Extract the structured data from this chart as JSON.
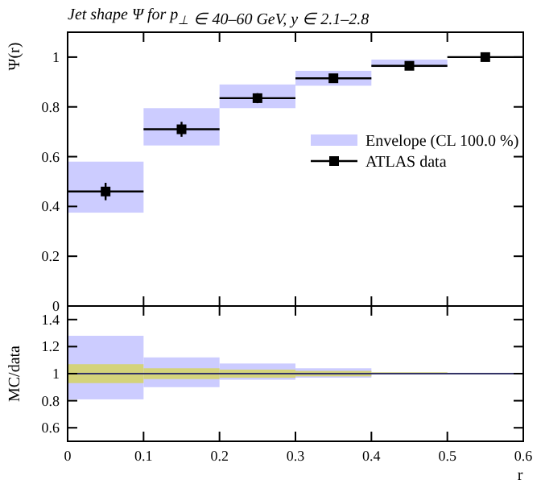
{
  "chart_data": [
    {
      "type": "scatter",
      "title": "Jet shape Ψ for p$_{⊥}$ ∈ 40–60 GeV, y ∈ 2.1–2.8",
      "ylabel": "Ψ(r)",
      "xlim": [
        0,
        0.6
      ],
      "xticks": [
        0,
        0.1,
        0.2,
        0.3,
        0.4,
        0.5,
        0.6
      ],
      "ylim": [
        0,
        1.1
      ],
      "yticks": [
        0,
        0.2,
        0.4,
        0.6,
        0.8,
        1
      ],
      "tick_labels": "y",
      "legend": "right",
      "grid": false,
      "series": [
        {
          "name": "Envelope (CL 100.0 %)",
          "type": "bar",
          "color": "#ccccff",
          "x": [
            0.05,
            0.15,
            0.25,
            0.35,
            0.45
          ],
          "base": [
            0.375,
            0.645,
            0.795,
            0.885,
            0.96
          ],
          "values": [
            0.205,
            0.15,
            0.095,
            0.06,
            0.03
          ]
        },
        {
          "name": "ATLAS data",
          "color": "#000000",
          "marker": "square",
          "x": [
            0.05,
            0.15,
            0.25,
            0.35,
            0.45,
            0.55
          ],
          "values": [
            0.46,
            0.71,
            0.835,
            0.915,
            0.965,
            1.0
          ],
          "errors": [
            0.035,
            0.03,
            0.02,
            0.012,
            0.006,
            0.004
          ],
          "xerrors": [
            0.05,
            0.05,
            0.05,
            0.05,
            0.05,
            0.05
          ]
        }
      ]
    },
    {
      "type": "bar",
      "ylabel": "MC/data",
      "xlabel": "r",
      "xlim": [
        0,
        0.6
      ],
      "xticks": [
        0,
        0.1,
        0.2,
        0.3,
        0.4,
        0.5,
        0.6
      ],
      "ylim": [
        0.5,
        1.5
      ],
      "yticks": [
        0.6,
        0.8,
        1,
        1.2,
        1.4
      ],
      "grid": false,
      "legend": false,
      "ref_lines": [
        {
          "axis": "y",
          "value": 1,
          "color": "#333366"
        }
      ],
      "series": [
        {
          "color": "#ccccff",
          "x": [
            0.05,
            0.15,
            0.25,
            0.35
          ],
          "base": [
            0.81,
            0.9,
            0.955,
            0.97
          ],
          "values": [
            0.47,
            0.22,
            0.12,
            0.07
          ]
        },
        {
          "color": "#d4d37a",
          "x": [
            0.05,
            0.15,
            0.25,
            0.35,
            0.45
          ],
          "base": [
            0.93,
            0.96,
            0.97,
            0.98,
            1.0
          ],
          "values": [
            0.14,
            0.08,
            0.06,
            0.04,
            0.01
          ]
        }
      ]
    }
  ]
}
